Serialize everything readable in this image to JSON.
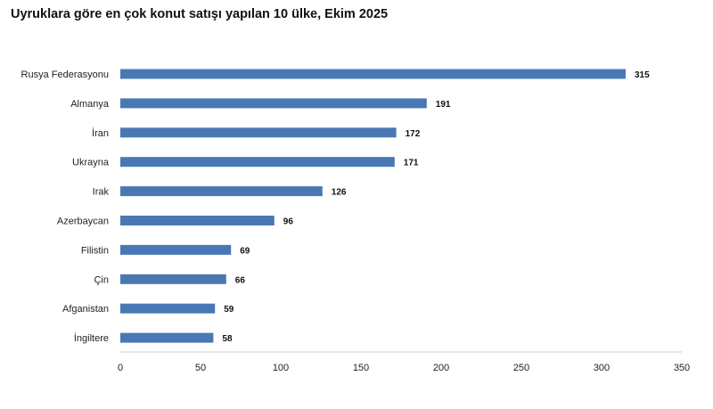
{
  "chart_data": {
    "type": "bar",
    "orientation": "horizontal",
    "title": "Uyruklara göre en çok konut satışı yapılan 10 ülke, Ekim 2025",
    "categories": [
      "Rusya Federasyonu",
      "Almanya",
      "İran",
      "Ukrayna",
      "Irak",
      "Azerbaycan",
      "Filistin",
      "Çin",
      "Afganistan",
      "İngiltere"
    ],
    "values": [
      315,
      191,
      172,
      171,
      126,
      96,
      69,
      66,
      59,
      58
    ],
    "xlim": [
      0,
      350
    ],
    "xticks": [
      0,
      50,
      100,
      150,
      200,
      250,
      300,
      350
    ],
    "grid": false,
    "legend": "none",
    "bar_color": "#4a78b4"
  }
}
